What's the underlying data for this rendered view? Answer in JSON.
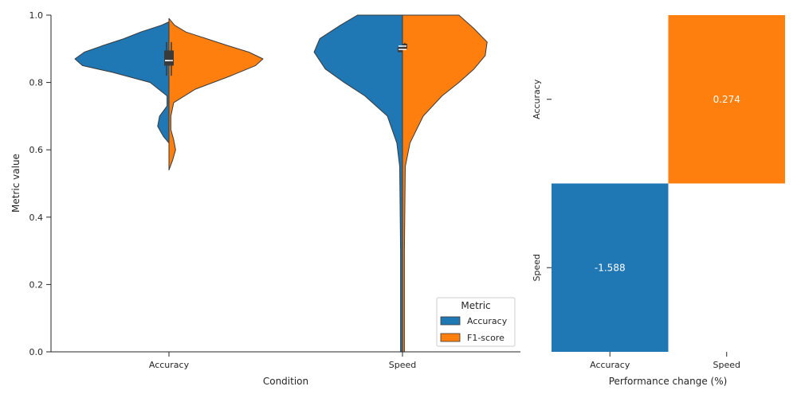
{
  "chart_data": [
    {
      "type": "violin",
      "xlabel": "Condition",
      "ylabel": "Metric value",
      "ylim": [
        0.0,
        1.0
      ],
      "yticks": [
        0.0,
        0.2,
        0.4,
        0.6,
        0.8,
        1.0
      ],
      "ytick_labels": [
        "0.0",
        "0.2",
        "0.4",
        "0.6",
        "0.8",
        "1.0"
      ],
      "categories": [
        "Accuracy",
        "Speed"
      ],
      "legend": {
        "title": "Metric",
        "position": "lower-right",
        "entries": [
          {
            "label": "Accuracy",
            "color": "#1f77b4"
          },
          {
            "label": "F1-score",
            "color": "#ff7f0e"
          }
        ]
      },
      "split": true,
      "series": [
        {
          "name": "Accuracy",
          "color": "#1f77b4",
          "violins": [
            {
              "category": "Accuracy",
              "min": 0.62,
              "max": 0.98,
              "q1": 0.85,
              "median": 0.865,
              "q3": 0.895,
              "whisker_low": 0.82,
              "whisker_high": 0.92,
              "density": [
                [
                  0.62,
                  0.0
                ],
                [
                  0.64,
                  0.06
                ],
                [
                  0.67,
                  0.12
                ],
                [
                  0.7,
                  0.1
                ],
                [
                  0.73,
                  0.02
                ],
                [
                  0.76,
                  0.02
                ],
                [
                  0.8,
                  0.2
                ],
                [
                  0.83,
                  0.6
                ],
                [
                  0.85,
                  0.92
                ],
                [
                  0.87,
                  1.0
                ],
                [
                  0.89,
                  0.9
                ],
                [
                  0.91,
                  0.7
                ],
                [
                  0.93,
                  0.48
                ],
                [
                  0.95,
                  0.3
                ],
                [
                  0.97,
                  0.08
                ],
                [
                  0.98,
                  0.0
                ]
              ]
            },
            {
              "category": "Speed",
              "min": 0.0,
              "max": 1.0,
              "q1": 0.89,
              "median": 0.898,
              "q3": 0.905,
              "whisker_low": 0.89,
              "whisker_high": 0.905,
              "density": [
                [
                  0.0,
                  0.02
                ],
                [
                  0.3,
                  0.02
                ],
                [
                  0.55,
                  0.03
                ],
                [
                  0.62,
                  0.06
                ],
                [
                  0.7,
                  0.16
                ],
                [
                  0.76,
                  0.4
                ],
                [
                  0.8,
                  0.62
                ],
                [
                  0.84,
                  0.82
                ],
                [
                  0.89,
                  0.94
                ],
                [
                  0.93,
                  0.88
                ],
                [
                  0.97,
                  0.66
                ],
                [
                  1.0,
                  0.48
                ]
              ]
            }
          ]
        },
        {
          "name": "F1-score",
          "color": "#ff7f0e",
          "violins": [
            {
              "category": "Accuracy",
              "min": 0.54,
              "max": 0.99,
              "q1": 0.85,
              "median": 0.865,
              "q3": 0.895,
              "whisker_low": 0.82,
              "whisker_high": 0.92,
              "density": [
                [
                  0.54,
                  0.0
                ],
                [
                  0.57,
                  0.04
                ],
                [
                  0.6,
                  0.07
                ],
                [
                  0.63,
                  0.05
                ],
                [
                  0.66,
                  0.02
                ],
                [
                  0.7,
                  0.02
                ],
                [
                  0.74,
                  0.05
                ],
                [
                  0.78,
                  0.28
                ],
                [
                  0.82,
                  0.66
                ],
                [
                  0.85,
                  0.92
                ],
                [
                  0.87,
                  1.0
                ],
                [
                  0.89,
                  0.85
                ],
                [
                  0.91,
                  0.62
                ],
                [
                  0.93,
                  0.4
                ],
                [
                  0.95,
                  0.18
                ],
                [
                  0.97,
                  0.06
                ],
                [
                  0.99,
                  0.0
                ]
              ]
            },
            {
              "category": "Speed",
              "min": 0.0,
              "max": 1.0,
              "q1": 0.9,
              "median": 0.908,
              "q3": 0.915,
              "whisker_low": 0.9,
              "whisker_high": 0.918,
              "density": [
                [
                  0.0,
                  0.02
                ],
                [
                  0.3,
                  0.02
                ],
                [
                  0.55,
                  0.03
                ],
                [
                  0.62,
                  0.08
                ],
                [
                  0.7,
                  0.22
                ],
                [
                  0.76,
                  0.42
                ],
                [
                  0.8,
                  0.6
                ],
                [
                  0.84,
                  0.76
                ],
                [
                  0.88,
                  0.88
                ],
                [
                  0.92,
                  0.9
                ],
                [
                  0.96,
                  0.76
                ],
                [
                  1.0,
                  0.6
                ]
              ]
            }
          ]
        }
      ]
    },
    {
      "type": "heatmap",
      "xlabel": "Performance change (%)",
      "ylabel": "",
      "x_categories": [
        "Accuracy",
        "Speed"
      ],
      "y_categories": [
        "Accuracy",
        "Speed"
      ],
      "cells": [
        {
          "row": "Accuracy",
          "col": "Speed",
          "value": 0.274,
          "label": "0.274",
          "color": "#ff7f0e"
        },
        {
          "row": "Speed",
          "col": "Accuracy",
          "value": -1.588,
          "label": "-1.588",
          "color": "#1f77b4"
        }
      ]
    }
  ]
}
